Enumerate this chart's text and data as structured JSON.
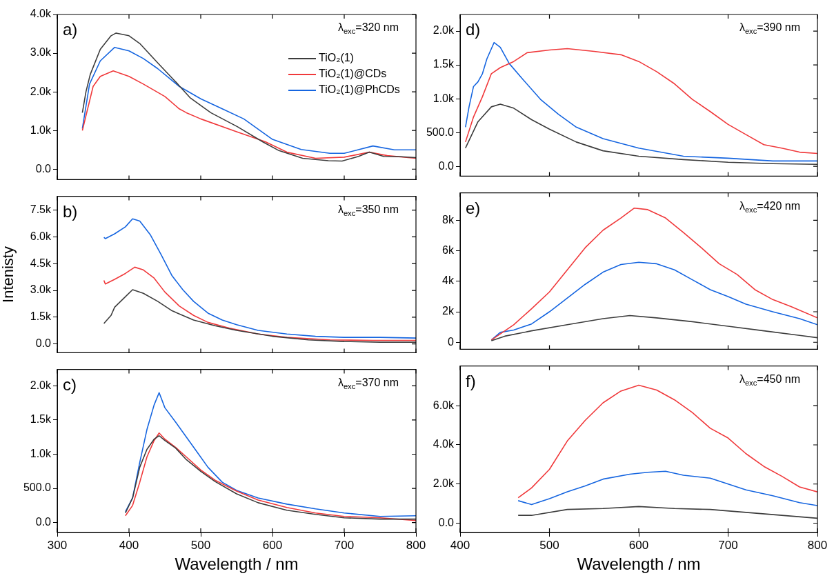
{
  "chart_data": [
    {
      "type": "line",
      "title": "a)",
      "annotations": [
        "λ$_{exc}$=320 nm"
      ],
      "xlim": [
        300,
        800
      ],
      "xticks": [
        300,
        400,
        500,
        600,
        700,
        800
      ],
      "ylim": [
        -270,
        4000
      ],
      "yticks": [
        {
          "value": 0,
          "label": "0.0"
        },
        {
          "value": 1000,
          "label": "1.0k"
        },
        {
          "value": 2000,
          "label": "2.0k"
        },
        {
          "value": 3000,
          "label": "3.0k"
        },
        {
          "value": 4000,
          "label": "4.0k"
        }
      ],
      "tick_labels": "y",
      "legend": "top right",
      "series": [
        {
          "name": "TiO₂(1)",
          "color": "#3c3c3c",
          "x": [
            335,
            340,
            346,
            360,
            375,
            382,
            400,
            415,
            441,
            468,
            485,
            514,
            551,
            587,
            609,
            642,
            678,
            697,
            720,
            735,
            755,
            780,
            800
          ],
          "values": [
            1460,
            2000,
            2450,
            3100,
            3450,
            3520,
            3450,
            3250,
            2730,
            2200,
            1850,
            1460,
            1100,
            700,
            480,
            280,
            220,
            210,
            330,
            440,
            330,
            320,
            300
          ]
        },
        {
          "name": "TiO₂(1)@CDs",
          "color": "#f0393b",
          "x": [
            335,
            350,
            360,
            378,
            400,
            420,
            450,
            470,
            480,
            500,
            550,
            590,
            620,
            660,
            700,
            735,
            760,
            800
          ],
          "values": [
            1000,
            2140,
            2400,
            2540,
            2400,
            2200,
            1880,
            1560,
            1460,
            1300,
            970,
            710,
            440,
            280,
            310,
            440,
            350,
            280
          ]
        },
        {
          "name": "TiO₂(1)@PhCDs",
          "color": "#1565e0",
          "x": [
            335,
            345,
            360,
            380,
            400,
            420,
            440,
            470,
            500,
            530,
            560,
            600,
            640,
            680,
            700,
            740,
            770,
            800
          ],
          "values": [
            1050,
            2200,
            2800,
            3150,
            3060,
            2860,
            2600,
            2140,
            1820,
            1560,
            1300,
            770,
            510,
            410,
            410,
            600,
            500,
            500
          ]
        }
      ]
    },
    {
      "type": "line",
      "title": "b)",
      "ylabel": "Intenisty",
      "annotations": [
        "λ$_{exc}$=350 nm"
      ],
      "xlim": [
        300,
        800
      ],
      "xticks": [
        300,
        400,
        500,
        600,
        700,
        800
      ],
      "ylim": [
        -490,
        8270
      ],
      "yticks": [
        {
          "value": 0,
          "label": "0.0"
        },
        {
          "value": 1500,
          "label": "1.5k"
        },
        {
          "value": 3000,
          "label": "3.0k"
        },
        {
          "value": 4500,
          "label": "4.5k"
        },
        {
          "value": 6000,
          "label": "6.0k"
        },
        {
          "value": 7500,
          "label": "7.5k"
        }
      ],
      "tick_labels": "y",
      "series": [
        {
          "color": "#3c3c3c",
          "x": [
            365,
            375,
            380,
            395,
            405,
            420,
            440,
            460,
            490,
            520,
            550,
            600,
            650,
            700,
            750,
            800
          ],
          "values": [
            1150,
            1600,
            2060,
            2650,
            3040,
            2840,
            2390,
            1860,
            1340,
            1020,
            760,
            430,
            230,
            140,
            100,
            100
          ]
        },
        {
          "color": "#f0393b",
          "x": [
            365,
            367,
            380,
            395,
            408,
            420,
            435,
            450,
            470,
            490,
            510,
            540,
            580,
            620,
            680,
            740,
            800
          ],
          "values": [
            3560,
            3360,
            3620,
            3950,
            4300,
            4150,
            3690,
            2910,
            2130,
            1600,
            1210,
            890,
            560,
            370,
            230,
            200,
            200
          ]
        },
        {
          "color": "#1565e0",
          "x": [
            365,
            367,
            380,
            395,
            405,
            415,
            430,
            445,
            460,
            475,
            490,
            510,
            530,
            550,
            580,
            620,
            660,
            700,
            750,
            800
          ],
          "values": [
            5970,
            5900,
            6170,
            6560,
            7010,
            6880,
            6100,
            4990,
            3820,
            3040,
            2390,
            1730,
            1340,
            1080,
            760,
            560,
            430,
            370,
            370,
            330
          ]
        }
      ]
    },
    {
      "type": "line",
      "title": "c)",
      "xlabel": "Wavelength / nm",
      "annotations": [
        "λ$_{exc}$=370 nm"
      ],
      "xlim": [
        300,
        800
      ],
      "xticks": [
        300,
        400,
        500,
        600,
        700,
        800
      ],
      "ylim": [
        -145,
        2240
      ],
      "yticks": [
        {
          "value": 0,
          "label": "0.0"
        },
        {
          "value": 500,
          "label": "500.0"
        },
        {
          "value": 1000,
          "label": "1.0k"
        },
        {
          "value": 1500,
          "label": "1.5k"
        },
        {
          "value": 2000,
          "label": "2.0k"
        }
      ],
      "series": [
        {
          "color": "#3c3c3c",
          "x": [
            395,
            405,
            415,
            425,
            435,
            442,
            450,
            465,
            480,
            500,
            520,
            550,
            580,
            620,
            660,
            700,
            750,
            800
          ],
          "values": [
            140,
            360,
            810,
            1070,
            1220,
            1270,
            1200,
            1090,
            920,
            750,
            600,
            420,
            290,
            180,
            120,
            70,
            50,
            50
          ]
        },
        {
          "color": "#f0393b",
          "x": [
            395,
            405,
            415,
            425,
            435,
            442,
            450,
            465,
            480,
            500,
            520,
            550,
            580,
            620,
            660,
            700,
            750,
            800
          ],
          "values": [
            100,
            250,
            590,
            960,
            1200,
            1310,
            1220,
            1100,
            960,
            770,
            620,
            460,
            330,
            220,
            140,
            90,
            70,
            30
          ]
        },
        {
          "color": "#1565e0",
          "x": [
            395,
            405,
            415,
            425,
            435,
            442,
            450,
            465,
            480,
            495,
            510,
            530,
            550,
            580,
            620,
            660,
            700,
            750,
            800
          ],
          "values": [
            160,
            360,
            880,
            1360,
            1720,
            1900,
            1680,
            1470,
            1250,
            1030,
            810,
            590,
            470,
            360,
            270,
            200,
            140,
            90,
            100
          ]
        }
      ]
    },
    {
      "type": "line",
      "title": "d)",
      "annotations": [
        "λ$_{exc}$=390 nm"
      ],
      "xlim": [
        400,
        800
      ],
      "xticks": [
        400,
        500,
        600,
        700,
        800
      ],
      "ylim": [
        -145,
        2245
      ],
      "yticks": [
        {
          "value": 0,
          "label": "0.0"
        },
        {
          "value": 500,
          "label": "500.0"
        },
        {
          "value": 1000,
          "label": "1.0k"
        },
        {
          "value": 1500,
          "label": "1.5k"
        },
        {
          "value": 2000,
          "label": "2.0k"
        }
      ],
      "tick_labels": "y",
      "series": [
        {
          "color": "#3c3c3c",
          "x": [
            406,
            420,
            435,
            445,
            460,
            480,
            500,
            530,
            560,
            600,
            650,
            700,
            750,
            800
          ],
          "values": [
            270,
            660,
            880,
            920,
            860,
            690,
            550,
            360,
            230,
            150,
            100,
            60,
            40,
            30
          ]
        },
        {
          "color": "#f0393b",
          "x": [
            406,
            415,
            425,
            435,
            445,
            460,
            475,
            500,
            520,
            550,
            580,
            600,
            620,
            640,
            660,
            680,
            700,
            720,
            740,
            760,
            780,
            800
          ],
          "values": [
            360,
            730,
            1030,
            1370,
            1460,
            1550,
            1680,
            1720,
            1740,
            1700,
            1650,
            1550,
            1400,
            1220,
            990,
            810,
            620,
            470,
            320,
            270,
            210,
            190
          ]
        },
        {
          "color": "#1565e0",
          "x": [
            406,
            410,
            415,
            420,
            425,
            430,
            438,
            445,
            455,
            470,
            490,
            510,
            530,
            560,
            600,
            650,
            700,
            750,
            800
          ],
          "values": [
            580,
            880,
            1180,
            1250,
            1370,
            1590,
            1830,
            1760,
            1520,
            1290,
            990,
            770,
            580,
            410,
            270,
            150,
            120,
            80,
            80
          ]
        }
      ]
    },
    {
      "type": "line",
      "title": "e)",
      "annotations": [
        "λ$_{exc}$=420 nm"
      ],
      "xlim": [
        400,
        800
      ],
      "xticks": [
        400,
        500,
        600,
        700,
        800
      ],
      "ylim": [
        -460,
        9800
      ],
      "yticks": [
        0,
        {
          "value": 2000,
          "label": "2k"
        },
        {
          "value": 4000,
          "label": "4k"
        },
        {
          "value": 6000,
          "label": "6k"
        },
        {
          "value": 8000,
          "label": "8k"
        }
      ],
      "tick_labels": "y",
      "series": [
        {
          "color": "#3c3c3c",
          "x": [
            435,
            450,
            480,
            520,
            560,
            590,
            620,
            660,
            700,
            740,
            780,
            800
          ],
          "values": [
            100,
            400,
            750,
            1150,
            1550,
            1750,
            1600,
            1350,
            1050,
            750,
            450,
            300
          ]
        },
        {
          "color": "#f0393b",
          "x": [
            435,
            445,
            460,
            480,
            500,
            520,
            540,
            560,
            580,
            595,
            610,
            630,
            650,
            670,
            690,
            710,
            730,
            750,
            770,
            800
          ],
          "values": [
            150,
            550,
            1150,
            2200,
            3300,
            4750,
            6200,
            7350,
            8150,
            8800,
            8700,
            8150,
            7200,
            6200,
            5150,
            4450,
            3450,
            2800,
            2350,
            1600
          ]
        },
        {
          "color": "#1565e0",
          "x": [
            435,
            445,
            460,
            480,
            500,
            520,
            540,
            560,
            580,
            600,
            620,
            640,
            660,
            680,
            700,
            720,
            750,
            780,
            800
          ],
          "values": [
            150,
            650,
            800,
            1200,
            2000,
            2900,
            3800,
            4600,
            5100,
            5250,
            5150,
            4750,
            4100,
            3450,
            3000,
            2500,
            2000,
            1550,
            1150
          ]
        }
      ]
    },
    {
      "type": "line",
      "title": "f)",
      "xlabel": "Wavelength / nm",
      "annotations": [
        "λ$_{exc}$=450 nm"
      ],
      "xlim": [
        400,
        800
      ],
      "xticks": [
        400,
        500,
        600,
        700,
        800
      ],
      "ylim": [
        -475,
        8030
      ],
      "yticks": [
        {
          "value": 0,
          "label": "0.0"
        },
        {
          "value": 2000,
          "label": "2.0k"
        },
        {
          "value": 4000,
          "label": "4.0k"
        },
        {
          "value": 6000,
          "label": "6.0k"
        }
      ],
      "series": [
        {
          "color": "#3c3c3c",
          "x": [
            465,
            480,
            520,
            560,
            600,
            640,
            680,
            720,
            760,
            800
          ],
          "values": [
            400,
            400,
            700,
            750,
            850,
            750,
            700,
            550,
            400,
            250
          ]
        },
        {
          "color": "#f0393b",
          "x": [
            465,
            480,
            500,
            520,
            540,
            560,
            580,
            600,
            620,
            640,
            660,
            680,
            700,
            720,
            740,
            760,
            780,
            800
          ],
          "values": [
            1300,
            1800,
            2750,
            4200,
            5250,
            6150,
            6750,
            7050,
            6800,
            6300,
            5650,
            4850,
            4350,
            3550,
            2900,
            2400,
            1850,
            1600
          ]
        },
        {
          "color": "#1565e0",
          "x": [
            465,
            480,
            500,
            520,
            540,
            560,
            590,
            610,
            630,
            650,
            680,
            700,
            720,
            750,
            780,
            800
          ],
          "values": [
            1150,
            950,
            1250,
            1600,
            1900,
            2250,
            2500,
            2600,
            2650,
            2450,
            2300,
            2000,
            1700,
            1400,
            1050,
            900
          ]
        }
      ]
    }
  ]
}
